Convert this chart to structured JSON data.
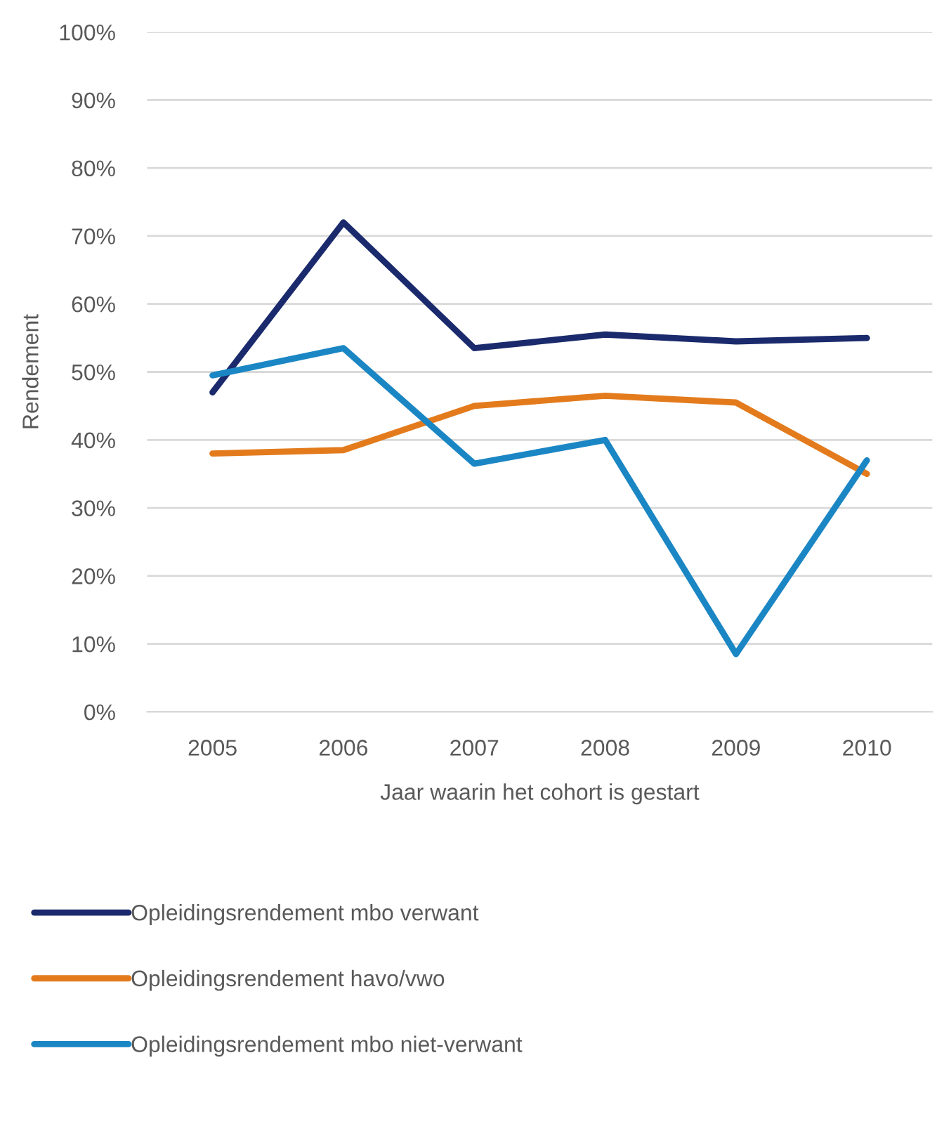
{
  "chart_data": {
    "type": "line",
    "xlabel": "Jaar waarin het cohort is gestart",
    "ylabel": "Rendement",
    "categories": [
      "2005",
      "2006",
      "2007",
      "2008",
      "2009",
      "2010"
    ],
    "series": [
      {
        "name": "Opleidingsrendement mbo verwant",
        "color": "#1a2a6c",
        "values": [
          47,
          72,
          53.5,
          55.5,
          54.5,
          55
        ]
      },
      {
        "name": "Opleidingsrendement havo/vwo",
        "color": "#e37b1d",
        "values": [
          38,
          38.5,
          45,
          46.5,
          45.5,
          35
        ]
      },
      {
        "name": "Opleidingsrendement mbo niet-verwant",
        "color": "#1b86c4",
        "values": [
          49.5,
          53.5,
          36.5,
          40,
          8.5,
          37
        ]
      }
    ],
    "ylim": [
      0,
      100
    ],
    "yticks": [
      {
        "value": 0,
        "label": "0%"
      },
      {
        "value": 10,
        "label": "10%"
      },
      {
        "value": 20,
        "label": "20%"
      },
      {
        "value": 30,
        "label": "30%"
      },
      {
        "value": 40,
        "label": "40%"
      },
      {
        "value": 50,
        "label": "50%"
      },
      {
        "value": 60,
        "label": "60%"
      },
      {
        "value": 70,
        "label": "70%"
      },
      {
        "value": 80,
        "label": "80%"
      },
      {
        "value": 90,
        "label": "90%"
      },
      {
        "value": 100,
        "label": "100%"
      }
    ],
    "grid": "y",
    "legend": "bottom"
  }
}
